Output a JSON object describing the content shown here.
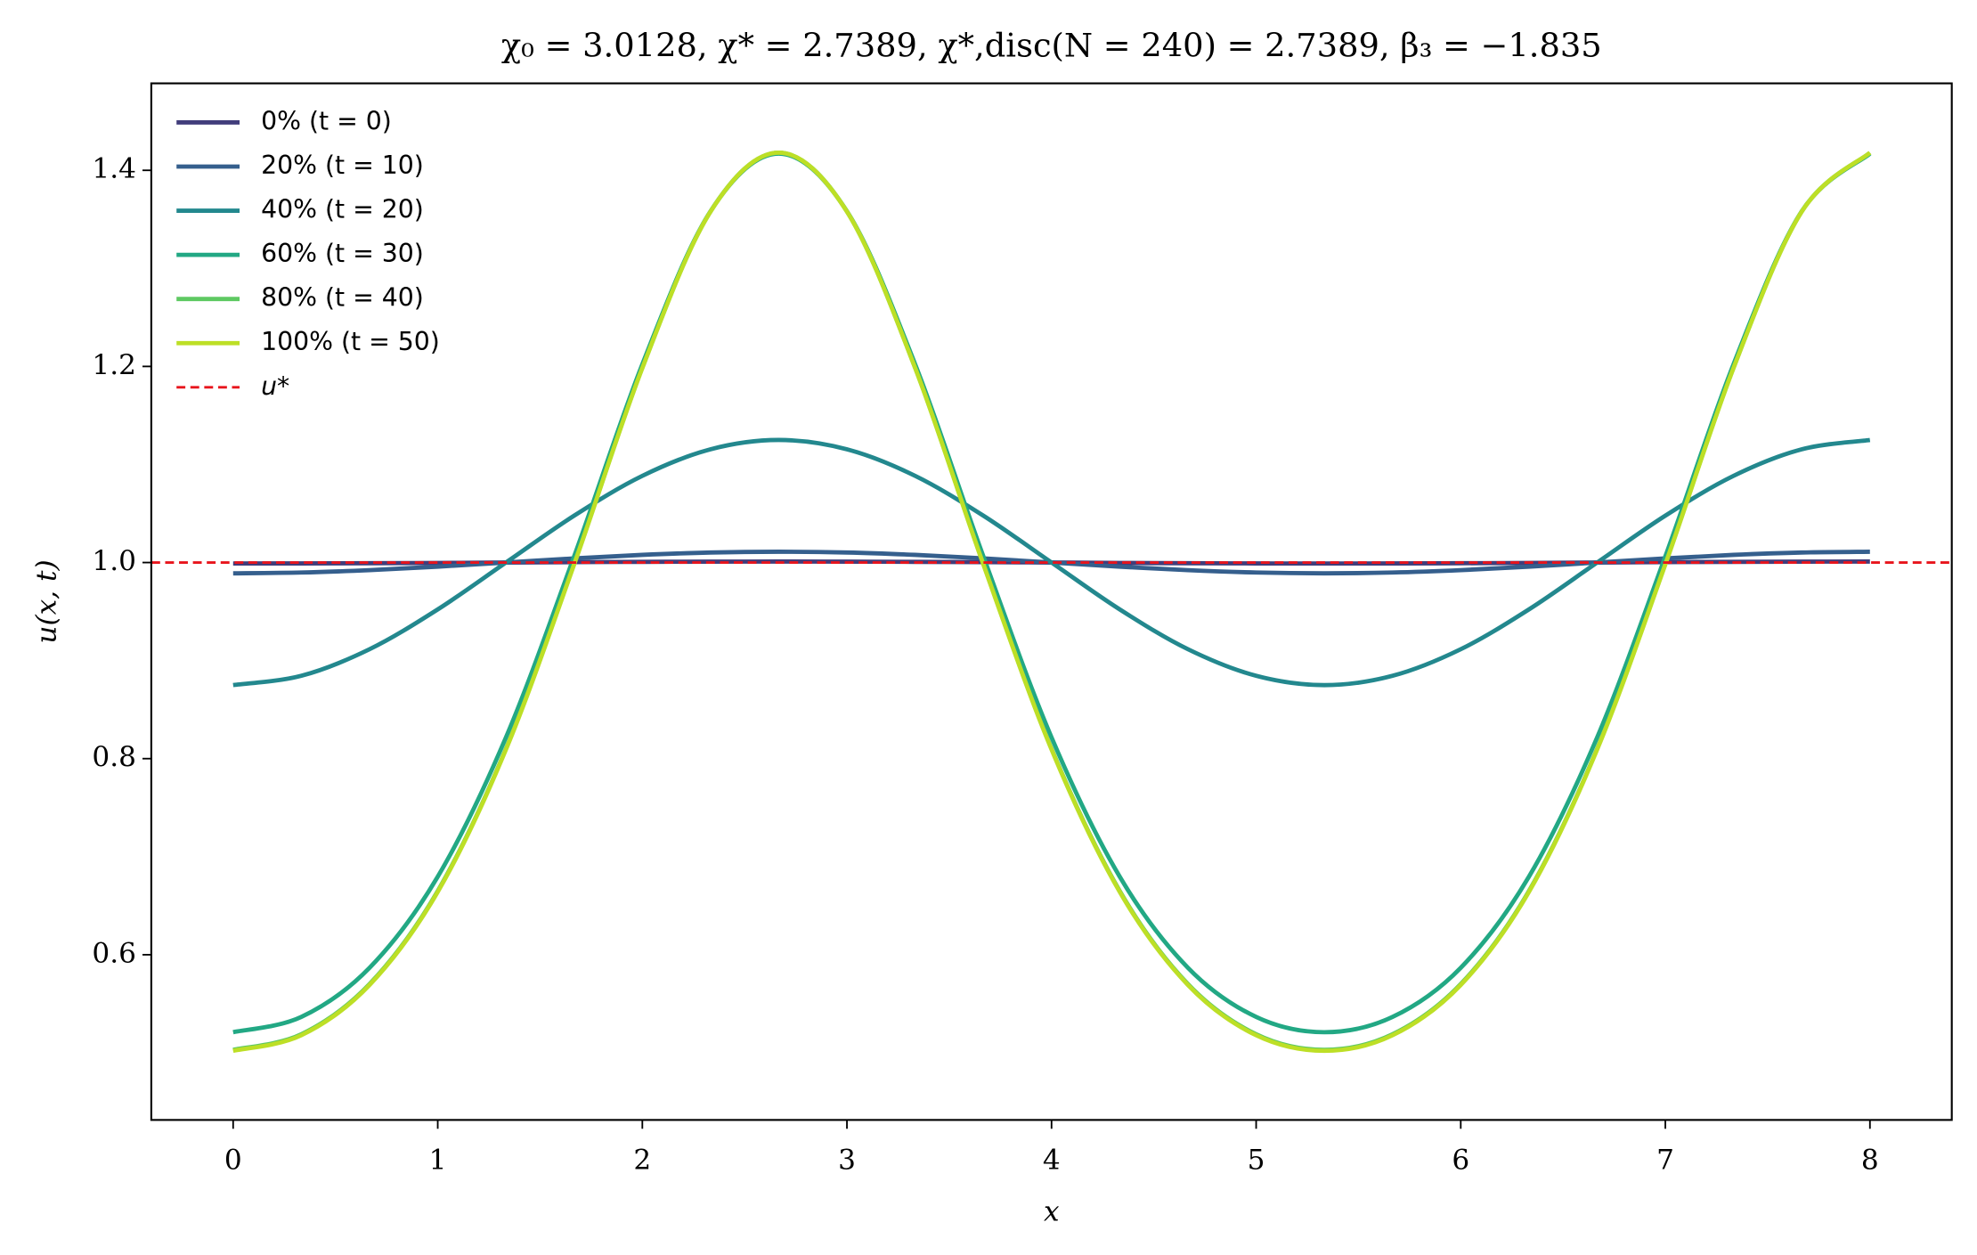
{
  "chart_data": {
    "type": "line",
    "title": "χ₀ = 3.0128,  χ* = 2.7389,  χ*,disc(N = 240) = 2.7389,  β₃ = −1.835",
    "x_label": "x",
    "y_label": "u(x, t)",
    "x": [
      0,
      0.3333,
      0.6667,
      1,
      1.3333,
      1.6667,
      2,
      2.3333,
      2.6667,
      3,
      3.3333,
      3.6667,
      4,
      4.3333,
      4.6667,
      5,
      5.3333,
      5.6667,
      6,
      6.3333,
      6.6667,
      7,
      7.3333,
      7.6667,
      8
    ],
    "series": [
      {
        "name": "0% (t = 0)",
        "color": "#413d7b",
        "values": [
          0.999,
          0.9991,
          0.9993,
          0.9996,
          1,
          1.0004,
          1.0007,
          1.0009,
          1.001,
          1.0009,
          1.0007,
          1.0004,
          1,
          0.9996,
          0.9993,
          0.9991,
          0.999,
          0.9991,
          0.9993,
          0.9996,
          1,
          1.0004,
          1.0007,
          1.0009,
          1.001
        ]
      },
      {
        "name": "20% (t = 10)",
        "color": "#355f8d",
        "values": [
          0.989,
          0.9898,
          0.9922,
          0.9958,
          1,
          1.0042,
          1.0078,
          1.0102,
          1.011,
          1.0102,
          1.0078,
          1.0042,
          1,
          0.9958,
          0.9922,
          0.9898,
          0.989,
          0.9898,
          0.9922,
          0.9958,
          1,
          1.0042,
          1.0078,
          1.0102,
          1.011
        ]
      },
      {
        "name": "40% (t = 20)",
        "color": "#23888e",
        "values": [
          0.875,
          0.8845,
          0.9116,
          0.9522,
          1,
          1.0478,
          1.0884,
          1.1155,
          1.125,
          1.1155,
          1.0884,
          1.0478,
          1,
          0.9522,
          0.9116,
          0.8845,
          0.875,
          0.8845,
          0.9116,
          0.9522,
          1,
          1.0478,
          1.0884,
          1.1155,
          1.125
        ]
      },
      {
        "name": "60% (t = 30)",
        "color": "#22a884",
        "values": [
          0.521,
          0.5366,
          0.5867,
          0.6796,
          0.8216,
          1.0063,
          1.2022,
          1.3582,
          1.417,
          1.3582,
          1.2022,
          1.0063,
          0.8216,
          0.6796,
          0.5867,
          0.5366,
          0.521,
          0.5366,
          0.5867,
          0.6796,
          0.8216,
          1.0063,
          1.2022,
          1.3582,
          1.417
        ]
      },
      {
        "name": "80% (t = 40)",
        "color": "#5ec962",
        "values": [
          0.503,
          0.5189,
          0.5701,
          0.665,
          0.81,
          0.9986,
          1.1986,
          1.358,
          1.418,
          1.358,
          1.1986,
          0.9986,
          0.81,
          0.665,
          0.5701,
          0.5189,
          0.503,
          0.5189,
          0.5701,
          0.665,
          0.81,
          0.9986,
          1.1986,
          1.358,
          1.418
        ]
      },
      {
        "name": "100% (t = 50)",
        "color": "#bddf26",
        "values": [
          0.502,
          0.5179,
          0.5692,
          0.6641,
          0.8093,
          0.9981,
          1.1984,
          1.3579,
          1.418,
          1.3579,
          1.1984,
          0.9981,
          0.8093,
          0.6641,
          0.5692,
          0.5179,
          0.502,
          0.5179,
          0.5692,
          0.6641,
          0.8093,
          0.9981,
          1.1984,
          1.3579,
          1.418
        ]
      }
    ],
    "reference_line": {
      "name": "u*",
      "value": 1,
      "color": "#e8141c"
    },
    "xlim": [
      -0.4,
      8.4
    ],
    "xticks": [
      0,
      1,
      2,
      3,
      4,
      5,
      6,
      7,
      8
    ],
    "ylim": [
      0.4315,
      1.4887
    ],
    "yticks": [
      0.6,
      0.8,
      {
        "value": 1,
        "label": "1.0"
      },
      1.2,
      1.4
    ],
    "grid": false,
    "legend": "upper left"
  }
}
